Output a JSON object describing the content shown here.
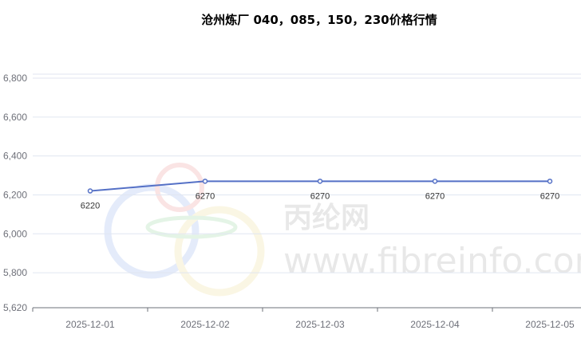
{
  "chart_data": {
    "type": "line",
    "title": "沧州炼厂 040，085，150，230价格行情",
    "categories": [
      "2025-12-01",
      "2025-12-02",
      "2025-12-03",
      "2025-12-04",
      "2025-12-05"
    ],
    "series": [
      {
        "values": [
          6220,
          6270,
          6270,
          6270,
          6270
        ],
        "color": "#5470c6"
      }
    ],
    "ylim": [
      5620,
      6800
    ],
    "yticks": [
      5620,
      5800,
      6000,
      6200,
      6400,
      6600,
      6800
    ],
    "ytick_labels": [
      "5,620",
      "5,800",
      "6,000",
      "6,200",
      "6,400",
      "6,600",
      "6,800"
    ],
    "data_labels": true,
    "grid": true,
    "xlabel": "",
    "ylabel": ""
  },
  "watermark": {
    "text_cn": "丙纶网",
    "text_url": "www.fibreinfo.com"
  }
}
